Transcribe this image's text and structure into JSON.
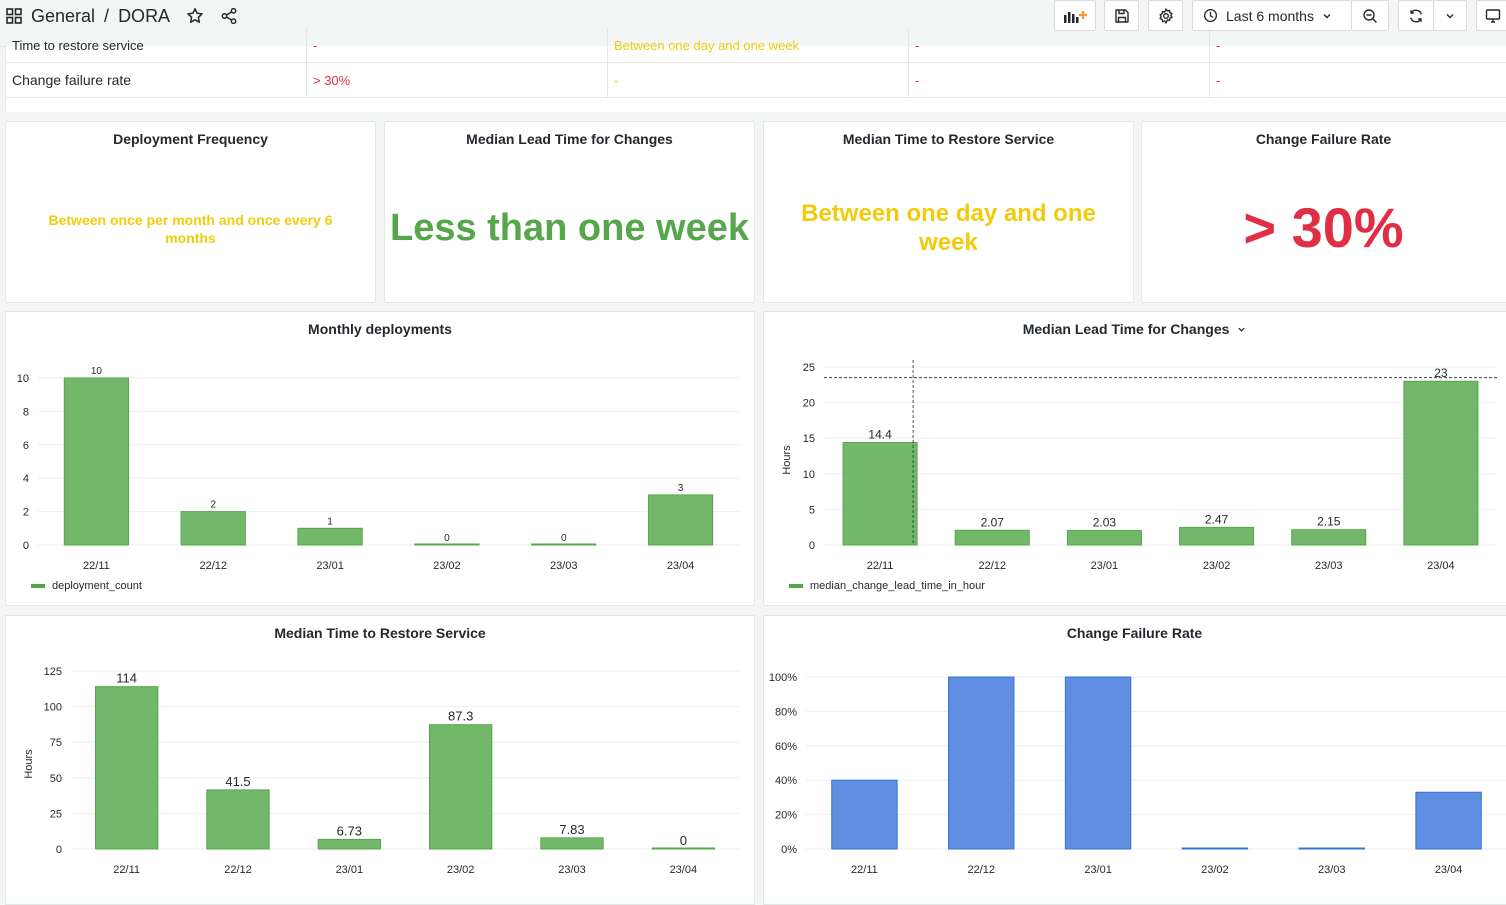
{
  "topbar": {
    "breadcrumb_section": "General",
    "breadcrumb_separator": "/",
    "breadcrumb_page": "DORA",
    "time_range": "Last 6 months"
  },
  "table": {
    "rows": [
      {
        "metric": "Time to restore service",
        "c1": "-",
        "c2": "Between one day and one week",
        "c3": "-",
        "c4": "-"
      },
      {
        "metric": "Change failure rate",
        "c1": "> 30%",
        "c2": "-",
        "c3": "-",
        "c4": "-"
      }
    ]
  },
  "stats": {
    "deployment_frequency": {
      "title": "Deployment Frequency",
      "value": "Between once per month and once every 6 months",
      "color": "#f2cc0c"
    },
    "lead_time": {
      "title": "Median Lead Time for Changes",
      "value": "Less than one week",
      "color": "#56a64b"
    },
    "restore": {
      "title": "Median Time to Restore Service",
      "value": "Between one day and one week",
      "color": "#f2cc0c"
    },
    "failure_rate": {
      "title": "Change Failure Rate",
      "value": "> 30%",
      "color": "#e02f44"
    }
  },
  "colors": {
    "green_bar": "#73b86a",
    "green_stroke": "#56a64b",
    "blue_bar": "#5f8ee0",
    "blue_stroke": "#3871dc"
  },
  "chart_data": [
    {
      "type": "bar",
      "title": "Monthly deployments",
      "categories": [
        "22/11",
        "22/12",
        "23/01",
        "23/02",
        "23/03",
        "23/04"
      ],
      "values": [
        10,
        2,
        1,
        0,
        0,
        3
      ],
      "value_labels": [
        "10",
        "2",
        "1",
        "0",
        "0",
        "3"
      ],
      "ylim": [
        0,
        10
      ],
      "yticks": [
        0,
        2,
        4,
        6,
        8,
        10
      ],
      "ytick_labels": [
        "0",
        "2",
        "4",
        "6",
        "8",
        "10"
      ],
      "ylabel": "",
      "legend": "deployment_count"
    },
    {
      "type": "bar",
      "title": "Median Lead Time for Changes",
      "categories": [
        "22/11",
        "22/12",
        "23/01",
        "23/02",
        "23/03",
        "23/04"
      ],
      "values": [
        14.4,
        2.07,
        2.03,
        2.47,
        2.15,
        23
      ],
      "value_labels": [
        "14.4",
        "2.07",
        "2.03",
        "2.47",
        "2.15",
        "23"
      ],
      "ylim": [
        0,
        25
      ],
      "yticks": [
        0,
        5,
        10,
        15,
        20,
        25
      ],
      "ytick_labels": [
        "0",
        "5",
        "10",
        "15",
        "20",
        "25"
      ],
      "ylabel": "Hours",
      "legend": "median_change_lead_time_in_hour",
      "crosshair_value": 23.5
    },
    {
      "type": "bar",
      "title": "Median Time to Restore Service",
      "categories": [
        "22/11",
        "22/12",
        "23/01",
        "23/02",
        "23/03",
        "23/04"
      ],
      "values": [
        114,
        41.5,
        6.73,
        87.3,
        7.83,
        0
      ],
      "value_labels": [
        "114",
        "41.5",
        "6.73",
        "87.3",
        "7.83",
        "0"
      ],
      "ylim": [
        0,
        125
      ],
      "yticks": [
        0,
        25,
        50,
        75,
        100,
        125
      ],
      "ytick_labels": [
        "0",
        "25",
        "50",
        "75",
        "100",
        "125"
      ],
      "ylabel": "Hours"
    },
    {
      "type": "bar",
      "title": "Change Failure Rate",
      "categories": [
        "22/11",
        "22/12",
        "23/01",
        "23/02",
        "23/03",
        "23/04"
      ],
      "values": [
        40,
        100,
        100,
        0,
        0,
        33
      ],
      "ylim": [
        0,
        100
      ],
      "yticks": [
        0,
        20,
        40,
        60,
        80,
        100
      ],
      "ytick_labels": [
        "0%",
        "20%",
        "40%",
        "60%",
        "80%",
        "100%"
      ],
      "ylabel": ""
    }
  ]
}
